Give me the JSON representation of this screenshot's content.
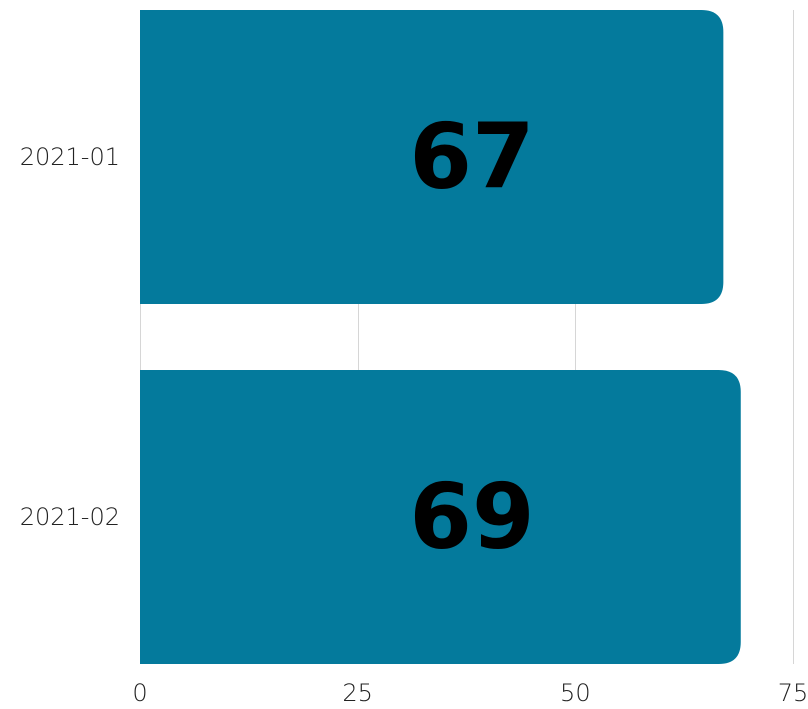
{
  "chart_data": {
    "type": "bar",
    "orientation": "horizontal",
    "categories": [
      "2021-01",
      "2021-02"
    ],
    "values": [
      67,
      69
    ],
    "data_labels": [
      "67",
      "69"
    ],
    "xlim": [
      0,
      75
    ],
    "x_ticks": [
      0,
      25,
      50,
      75
    ],
    "x_tick_labels": [
      "0",
      "25",
      "50",
      "75"
    ],
    "title": "",
    "xlabel": "",
    "ylabel": "",
    "grid": "vertical",
    "legend": "none",
    "colors": {
      "bar": "#047a9c",
      "grid": "#d6d6d6",
      "label": "#000000",
      "axis_text": "#222222"
    }
  }
}
